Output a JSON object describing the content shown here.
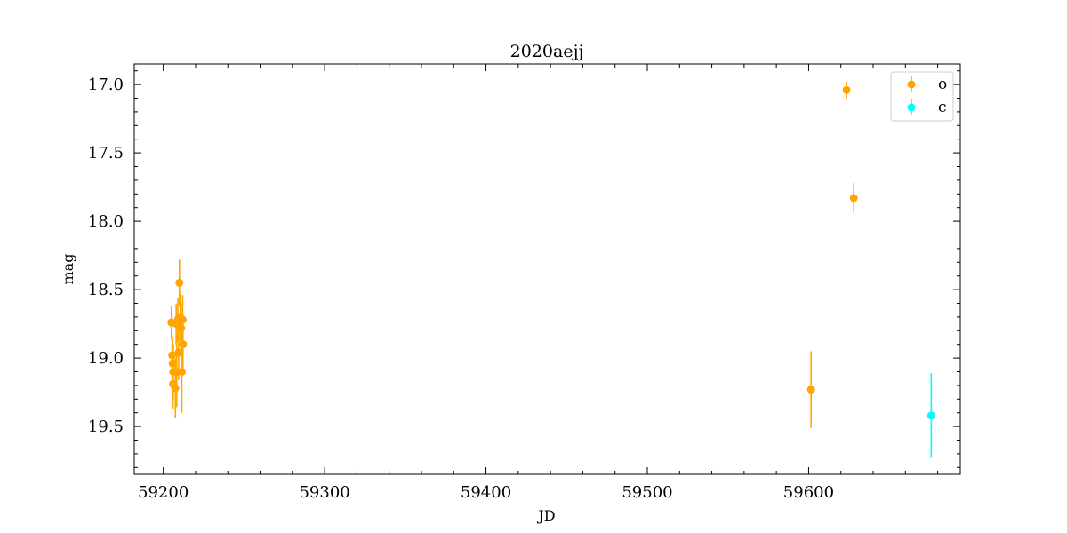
{
  "chart_data": {
    "type": "scatter",
    "title": "2020aejj",
    "xlabel": "JD",
    "ylabel": "mag",
    "xlim": [
      59182,
      59694
    ],
    "ylim": [
      19.85,
      16.85
    ],
    "y_inverted": true,
    "xticks": [
      "59200",
      "59300",
      "59400",
      "59500",
      "59600"
    ],
    "yticks": [
      "17.0",
      "17.5",
      "18.0",
      "18.5",
      "19.0",
      "19.5"
    ],
    "legend_position": "top-right",
    "grid": false,
    "series": [
      {
        "name": "o",
        "color": "#FFA500",
        "points": [
          {
            "x": 59205.0,
            "y": 18.74,
            "err": 0.12
          },
          {
            "x": 59205.5,
            "y": 18.98,
            "err": 0.15
          },
          {
            "x": 59205.8,
            "y": 19.04,
            "err": 0.18
          },
          {
            "x": 59206.2,
            "y": 19.1,
            "err": 0.2
          },
          {
            "x": 59206.0,
            "y": 19.19,
            "err": 0.18
          },
          {
            "x": 59207.5,
            "y": 19.22,
            "err": 0.22
          },
          {
            "x": 59208.0,
            "y": 18.75,
            "err": 0.15
          },
          {
            "x": 59208.3,
            "y": 19.1,
            "err": 0.26
          },
          {
            "x": 59209.0,
            "y": 18.72,
            "err": 0.16
          },
          {
            "x": 59209.5,
            "y": 18.96,
            "err": 0.2
          },
          {
            "x": 59210.0,
            "y": 18.45,
            "err": 0.17
          },
          {
            "x": 59210.5,
            "y": 18.7,
            "err": 0.18
          },
          {
            "x": 59211.0,
            "y": 18.78,
            "err": 0.18
          },
          {
            "x": 59211.5,
            "y": 19.1,
            "err": 0.3
          },
          {
            "x": 59212.0,
            "y": 18.72,
            "err": 0.18
          },
          {
            "x": 59212.2,
            "y": 18.9,
            "err": 0.2
          },
          {
            "x": 59601.5,
            "y": 19.23,
            "err": 0.28
          },
          {
            "x": 59623.5,
            "y": 17.04,
            "err": 0.06
          },
          {
            "x": 59628.0,
            "y": 17.83,
            "err": 0.11
          }
        ]
      },
      {
        "name": "c",
        "color": "#00FFFF",
        "points": [
          {
            "x": 59676.0,
            "y": 19.42,
            "err": 0.31
          }
        ]
      }
    ]
  }
}
